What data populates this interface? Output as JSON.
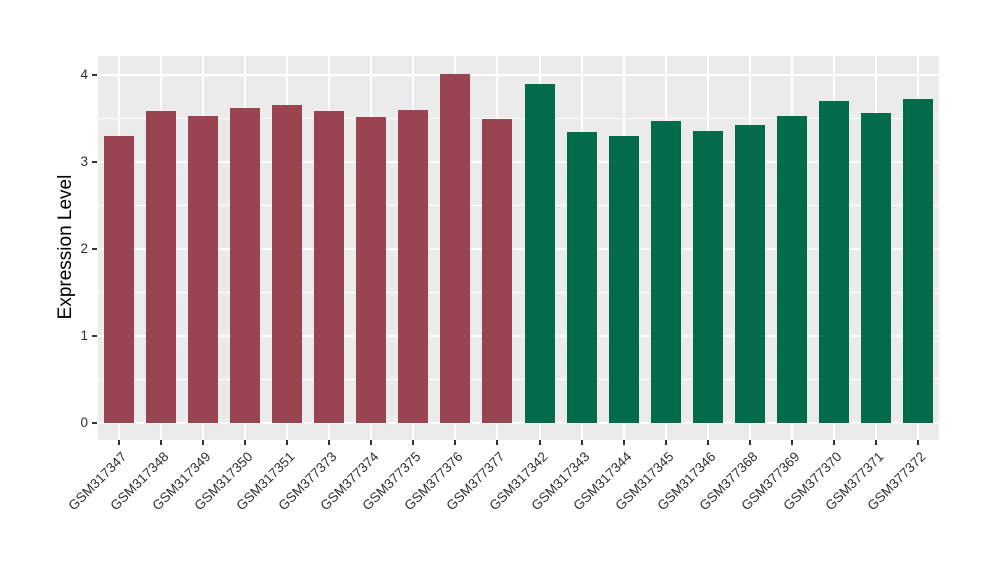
{
  "chart_data": {
    "type": "bar",
    "title": "",
    "xlabel": "",
    "ylabel": "Expression Level",
    "ylim": [
      0,
      4.22
    ],
    "yticks": [
      "0",
      "1",
      "2",
      "3",
      "4"
    ],
    "grid": "on",
    "legend": "none",
    "panel_bg": "#EBEBEB",
    "grid_color": "#FFFFFF",
    "tick_color": "#333333",
    "categories": [
      "GSM317347",
      "GSM317348",
      "GSM317349",
      "GSM317350",
      "GSM317351",
      "GSM377373",
      "GSM377374",
      "GSM377375",
      "GSM377376",
      "GSM377377",
      "GSM317342",
      "GSM317343",
      "GSM317344",
      "GSM317345",
      "GSM317346",
      "GSM377368",
      "GSM377369",
      "GSM377370",
      "GSM377371",
      "GSM377372"
    ],
    "values": [
      3.3,
      3.59,
      3.53,
      3.62,
      3.65,
      3.59,
      3.52,
      3.6,
      4.01,
      3.49,
      3.9,
      3.35,
      3.3,
      3.47,
      3.36,
      3.42,
      3.53,
      3.7,
      3.56,
      3.72
    ],
    "groups": [
      "group1",
      "group1",
      "group1",
      "group1",
      "group1",
      "group1",
      "group1",
      "group1",
      "group1",
      "group1",
      "group2",
      "group2",
      "group2",
      "group2",
      "group2",
      "group2",
      "group2",
      "group2",
      "group2",
      "group2"
    ],
    "group_colors": {
      "group1": "#9B4451",
      "group2": "#016B4A"
    }
  }
}
